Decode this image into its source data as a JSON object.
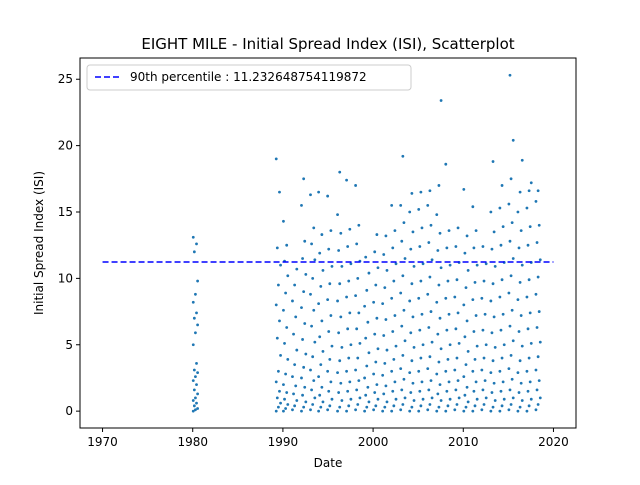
{
  "chart_data": {
    "type": "scatter",
    "title": "EIGHT MILE - Initial Spread Index (ISI), Scatterplot",
    "xlabel": "Date",
    "ylabel": "Initial Spread Index (ISI)",
    "x_axis_kind": "date-year",
    "xlim": [
      1967.5,
      2022.5
    ],
    "ylim": [
      -1.27,
      26.6
    ],
    "xticks": [
      1970,
      1980,
      1990,
      2000,
      2010,
      2020
    ],
    "yticks": [
      0,
      5,
      10,
      15,
      20,
      25
    ],
    "grid": false,
    "legend_position": "top-left",
    "series": [
      {
        "kind": "scatter",
        "color": "#1f77b4",
        "marker_size": 2,
        "year_points": [
          {
            "year": 1980.3,
            "values": [
              0.0,
              0.1,
              0.2,
              0.4,
              0.6,
              0.8,
              1.0,
              1.3,
              1.6,
              2.0,
              2.3,
              2.6,
              2.9,
              3.1,
              3.6,
              5.0,
              5.9,
              6.5,
              7.0,
              7.4,
              8.2,
              8.8,
              9.8,
              12.0,
              12.6,
              13.1
            ]
          },
          {
            "year": 1989.5,
            "values": [
              0.0,
              0.3,
              0.6,
              1.0,
              1.5,
              2.2,
              3.0,
              4.2,
              5.5,
              6.8,
              8.0,
              9.5,
              11.0,
              12.3,
              16.5,
              19.0
            ]
          },
          {
            "year": 1990.3,
            "values": [
              0.0,
              0.2,
              0.5,
              0.9,
              1.4,
              2.0,
              2.8,
              3.9,
              5.1,
              6.3,
              7.6,
              8.9,
              10.2,
              11.3,
              12.5,
              14.3
            ]
          },
          {
            "year": 1991.3,
            "values": [
              0.1,
              0.4,
              0.8,
              1.3,
              1.9,
              2.6,
              3.5,
              4.6,
              5.8,
              7.1,
              8.3,
              9.5,
              10.7
            ]
          },
          {
            "year": 1992.3,
            "values": [
              0.0,
              0.3,
              0.7,
              1.2,
              1.8,
              2.5,
              3.3,
              4.3,
              5.4,
              6.6,
              7.8,
              9.0,
              10.3,
              11.5,
              12.8,
              15.5,
              17.5
            ]
          },
          {
            "year": 1993.3,
            "values": [
              0.1,
              0.5,
              1.0,
              1.6,
              2.3,
              3.1,
              4.1,
              5.2,
              6.4,
              7.6,
              8.8,
              10.0,
              11.4,
              12.6,
              13.8,
              16.3
            ]
          },
          {
            "year": 1994.2,
            "values": [
              0.0,
              0.3,
              0.7,
              1.2,
              1.8,
              2.6,
              3.5,
              4.5,
              5.6,
              6.8,
              8.1,
              9.4,
              10.6,
              11.9,
              13.3,
              16.5
            ]
          },
          {
            "year": 1995.2,
            "values": [
              0.1,
              0.4,
              0.9,
              1.5,
              2.2,
              3.0,
              3.9,
              4.9,
              6.0,
              7.2,
              8.4,
              9.6,
              10.9,
              12.2,
              13.6,
              16.2
            ]
          },
          {
            "year": 1996.3,
            "values": [
              0.0,
              0.3,
              0.8,
              1.4,
              2.1,
              2.9,
              3.8,
              4.8,
              5.9,
              7.1,
              8.3,
              9.6,
              10.9,
              12.1,
              13.4,
              14.8,
              18.0
            ]
          },
          {
            "year": 1997.3,
            "values": [
              0.0,
              0.4,
              0.9,
              1.5,
              2.2,
              3.0,
              4.0,
              5.0,
              6.2,
              7.4,
              8.6,
              9.8,
              11.1,
              12.4,
              13.7,
              17.4
            ]
          },
          {
            "year": 1998.3,
            "values": [
              0.1,
              0.5,
              1.0,
              1.6,
              2.3,
              3.1,
              4.0,
              5.1,
              6.2,
              7.4,
              8.7,
              10.0,
              11.3,
              12.6,
              14.0,
              17.0
            ]
          },
          {
            "year": 1999.3,
            "values": [
              0.0,
              0.3,
              0.7,
              1.2,
              1.8,
              2.5,
              3.4,
              4.4,
              5.5,
              6.7,
              7.9,
              9.1,
              10.4,
              11.6
            ]
          },
          {
            "year": 2000.3,
            "values": [
              0.1,
              0.4,
              0.9,
              1.4,
              2.0,
              2.8,
              3.7,
              4.7,
              5.8,
              7.0,
              8.2,
              9.5,
              10.8,
              12.0,
              13.3
            ]
          },
          {
            "year": 2001.3,
            "values": [
              0.0,
              0.3,
              0.7,
              1.3,
              1.9,
              2.7,
              3.6,
              4.6,
              5.7,
              6.9,
              8.1,
              9.3,
              10.6,
              11.8,
              13.2
            ]
          },
          {
            "year": 2002.3,
            "values": [
              0.0,
              0.4,
              0.9,
              1.5,
              2.2,
              3.0,
              3.9,
              4.9,
              6.0,
              7.2,
              8.5,
              9.8,
              11.1,
              12.3,
              13.6,
              15.5
            ]
          },
          {
            "year": 2003.3,
            "values": [
              0.1,
              0.5,
              1.0,
              1.6,
              2.4,
              3.2,
              4.2,
              5.3,
              6.4,
              7.6,
              8.9,
              10.2,
              11.5,
              12.8,
              14.2,
              15.5,
              19.2
            ]
          },
          {
            "year": 2004.3,
            "values": [
              0.0,
              0.3,
              0.8,
              1.4,
              2.1,
              2.9,
              3.8,
              4.8,
              5.9,
              7.1,
              8.3,
              9.6,
              10.9,
              12.2,
              13.5,
              15.0,
              16.4
            ]
          },
          {
            "year": 2005.3,
            "values": [
              0.0,
              0.4,
              0.9,
              1.5,
              2.2,
              3.0,
              4.0,
              5.0,
              6.1,
              7.3,
              8.5,
              9.8,
              11.1,
              12.4,
              13.8,
              15.2,
              16.5
            ]
          },
          {
            "year": 2006.3,
            "values": [
              0.1,
              0.5,
              1.0,
              1.6,
              2.3,
              3.2,
              4.1,
              5.2,
              6.3,
              7.5,
              8.8,
              10.1,
              11.4,
              12.7,
              14.0,
              15.5,
              16.6
            ]
          },
          {
            "year": 2007.3,
            "values": [
              0.0,
              0.3,
              0.8,
              1.3,
              2.0,
              2.8,
              3.7,
              4.7,
              5.8,
              7.0,
              8.2,
              9.5,
              10.8,
              12.1,
              13.4,
              14.8,
              17.0,
              23.4
            ]
          },
          {
            "year": 2008.3,
            "values": [
              0.0,
              0.4,
              0.9,
              1.5,
              2.2,
              3.0,
              3.9,
              5.0,
              6.1,
              7.3,
              8.5,
              9.8,
              11.0,
              12.3,
              13.6,
              18.6
            ]
          },
          {
            "year": 2009.3,
            "values": [
              0.1,
              0.5,
              1.0,
              1.6,
              2.3,
              3.1,
              4.0,
              5.1,
              6.2,
              7.4,
              8.6,
              9.9,
              11.2,
              12.4,
              13.8
            ]
          },
          {
            "year": 2010.3,
            "values": [
              0.0,
              0.3,
              0.7,
              1.2,
              1.8,
              2.6,
              3.5,
              4.5,
              5.6,
              6.8,
              8.0,
              9.3,
              10.6,
              11.9,
              13.2,
              16.7
            ]
          },
          {
            "year": 2011.3,
            "values": [
              0.0,
              0.4,
              0.9,
              1.5,
              2.2,
              3.0,
              3.9,
              4.9,
              6.0,
              7.2,
              8.4,
              9.7,
              11.0,
              12.3,
              13.6,
              15.4
            ]
          },
          {
            "year": 2012.3,
            "values": [
              0.1,
              0.5,
              1.0,
              1.6,
              2.3,
              3.1,
              4.0,
              5.0,
              6.1,
              7.3,
              8.5,
              9.8,
              11.1,
              12.4
            ]
          },
          {
            "year": 2013.3,
            "values": [
              0.0,
              0.3,
              0.8,
              1.4,
              2.1,
              2.9,
              3.8,
              4.8,
              5.9,
              7.1,
              8.3,
              9.6,
              10.9,
              12.2,
              13.5,
              15.0,
              18.8
            ]
          },
          {
            "year": 2014.3,
            "values": [
              0.0,
              0.4,
              0.9,
              1.5,
              2.2,
              3.0,
              4.0,
              5.0,
              6.1,
              7.3,
              8.6,
              9.9,
              11.2,
              12.5,
              13.9,
              15.3,
              17.0
            ]
          },
          {
            "year": 2015.3,
            "values": [
              0.1,
              0.5,
              1.0,
              1.6,
              2.4,
              3.2,
              4.2,
              5.3,
              6.4,
              7.6,
              8.9,
              10.2,
              11.5,
              12.8,
              14.2,
              15.6,
              17.5,
              20.4,
              25.3
            ]
          },
          {
            "year": 2016.3,
            "values": [
              0.0,
              0.3,
              0.8,
              1.4,
              2.1,
              2.9,
              3.8,
              4.9,
              6.0,
              7.2,
              8.4,
              9.7,
              11.0,
              12.3,
              13.6,
              15.0,
              16.5,
              18.9
            ]
          },
          {
            "year": 2017.3,
            "values": [
              0.0,
              0.4,
              0.9,
              1.5,
              2.2,
              3.0,
              4.0,
              5.1,
              6.2,
              7.4,
              8.6,
              9.9,
              11.2,
              12.5,
              13.9,
              15.3,
              16.6,
              17.2
            ]
          },
          {
            "year": 2018.3,
            "values": [
              0.1,
              0.5,
              1.0,
              1.6,
              2.3,
              3.1,
              4.1,
              5.2,
              6.3,
              7.5,
              8.8,
              10.1,
              11.4,
              12.7,
              14.0,
              15.8,
              16.6
            ]
          }
        ]
      },
      {
        "kind": "hline",
        "name": "90th percentile : 11.232648754119872",
        "value": 11.232648754119872,
        "x_range": [
          1970,
          2020
        ],
        "color": "#0000ff",
        "line_style": "dashed"
      }
    ]
  }
}
